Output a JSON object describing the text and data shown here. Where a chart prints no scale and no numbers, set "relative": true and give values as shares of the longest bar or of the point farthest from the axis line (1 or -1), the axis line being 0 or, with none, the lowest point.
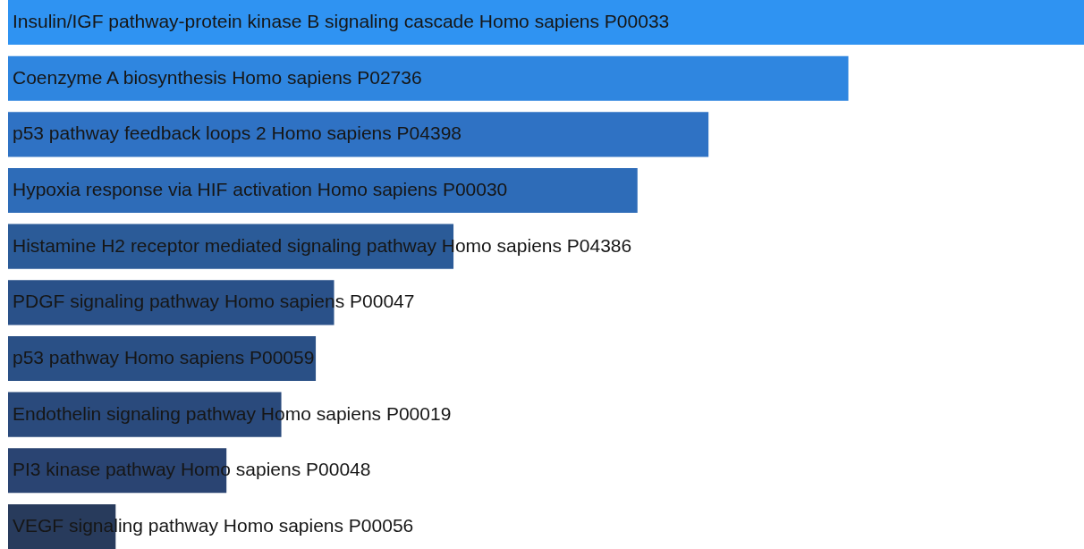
{
  "chart_data": {
    "type": "bar",
    "orientation": "horizontal",
    "relative": true,
    "categories": [
      "Insulin/IGF pathway-protein kinase B signaling cascade Homo sapiens P00033",
      "Coenzyme A biosynthesis Homo sapiens P02736",
      "p53 pathway feedback loops 2 Homo sapiens P04398",
      "Hypoxia response via HIF activation Homo sapiens P00030",
      "Histamine H2 receptor mediated signaling pathway Homo sapiens P04386",
      "PDGF signaling pathway Homo sapiens P00047",
      "p53 pathway Homo sapiens P00059",
      "Endothelin signaling pathway Homo sapiens P00019",
      "PI3 kinase pathway Homo sapiens P00048",
      "VEGF signaling pathway Homo sapiens P00056"
    ],
    "values": [
      1,
      0.781,
      0.651,
      0.585,
      0.414,
      0.303,
      0.286,
      0.254,
      0.203,
      0.1
    ],
    "colors": [
      "#2f93f2",
      "#2f86e0",
      "#2f72c4",
      "#2e6cb8",
      "#2b5b98",
      "#2a5189",
      "#2a5086",
      "#2a4a7c",
      "#2a4472",
      "#283b5c"
    ]
  }
}
